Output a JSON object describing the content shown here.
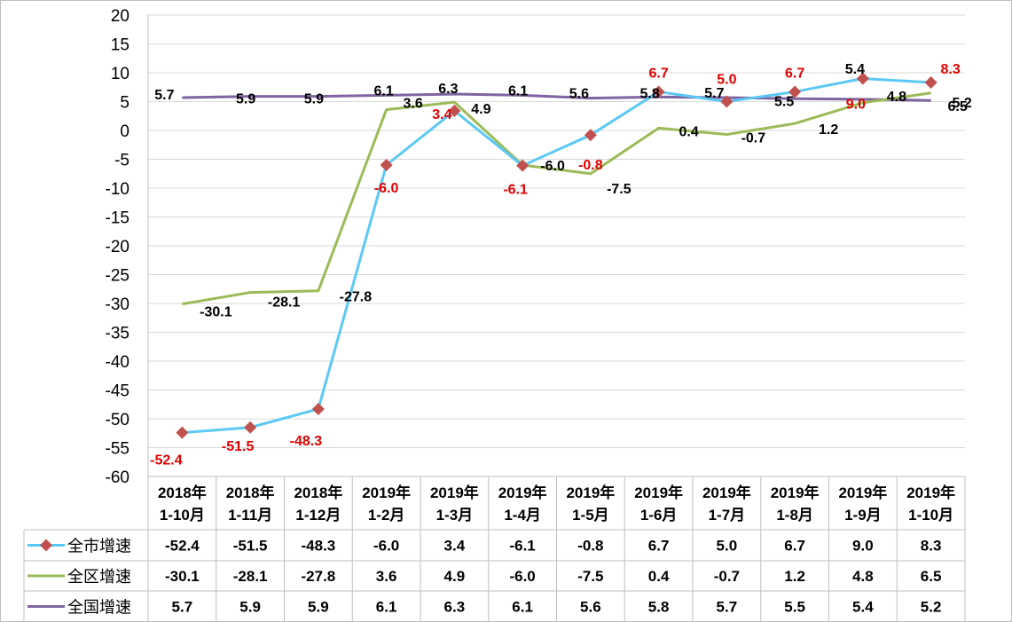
{
  "chart_data": {
    "type": "line",
    "categories": [
      [
        "2018年",
        "1-10月"
      ],
      [
        "2018年",
        "1-11月"
      ],
      [
        "2018年",
        "1-12月"
      ],
      [
        "2019年",
        "1-2月"
      ],
      [
        "2019年",
        "1-3月"
      ],
      [
        "2019年",
        "1-4月"
      ],
      [
        "2019年",
        "1-5月"
      ],
      [
        "2019年",
        "1-6月"
      ],
      [
        "2019年",
        "1-7月"
      ],
      [
        "2019年",
        "1-8月"
      ],
      [
        "2019年",
        "1-9月"
      ],
      [
        "2019年",
        "1-10月"
      ]
    ],
    "series": [
      {
        "name": "全市增速",
        "values": [
          -52.4,
          -51.5,
          -48.3,
          -6.0,
          3.4,
          -6.1,
          -0.8,
          6.7,
          5.0,
          6.7,
          9.0,
          8.3
        ],
        "table": [
          "-52.4",
          "-51.5",
          "-48.3",
          "-6.0",
          "3.4",
          "-6.1",
          "-0.8",
          "6.7",
          "5.0",
          "6.7",
          "9.0",
          "8.3"
        ],
        "color": "#5bc8f5",
        "marker": "diamond",
        "marker_color": "#c0504d",
        "label_color": "#e00000"
      },
      {
        "name": "全区增速",
        "values": [
          -30.1,
          -28.1,
          -27.8,
          3.6,
          4.9,
          -6.0,
          -7.5,
          0.4,
          -0.7,
          1.2,
          4.8,
          6.5
        ],
        "table": [
          "-30.1",
          "-28.1",
          "-27.8",
          "3.6",
          "4.9",
          "-6.0",
          "-7.5",
          "0.4",
          "-0.7",
          "1.2",
          "4.8",
          "6.5"
        ],
        "color": "#9bbb59",
        "label_color": "#000000"
      },
      {
        "name": "全国增速",
        "values": [
          5.7,
          5.9,
          5.9,
          6.1,
          6.3,
          6.1,
          5.6,
          5.8,
          5.7,
          5.5,
          5.4,
          5.2
        ],
        "table": [
          "5.7",
          "5.9",
          "5.9",
          "6.1",
          "6.3",
          "6.1",
          "5.6",
          "5.8",
          "5.7",
          "5.5",
          "5.4",
          "5.2"
        ],
        "color": "#8064a2",
        "label_color": "#000000"
      }
    ],
    "ylim": [
      -60,
      20
    ],
    "yticks": [
      "20",
      "15",
      "10",
      "5",
      "0",
      "-5",
      "-10",
      "-15",
      "-20",
      "-25",
      "-30",
      "-35",
      "-40",
      "-45",
      "-50",
      "-55",
      "-60"
    ],
    "grid": true,
    "legend": "data-table"
  }
}
